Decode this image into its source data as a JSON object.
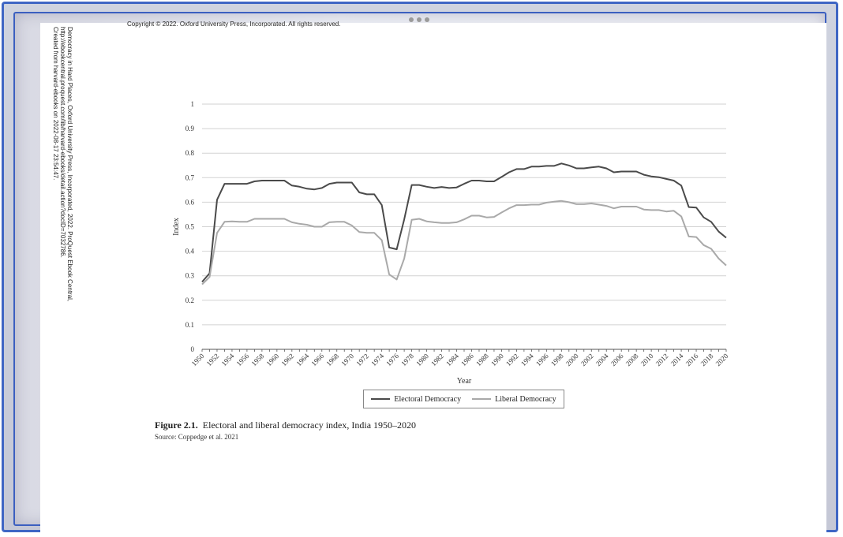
{
  "header": {
    "copyright": "Copyright © 2022. Oxford University Press, Incorporated. All rights reserved."
  },
  "sidebar": {
    "line1": "Democracy in Hard Places, Oxford University Press, Incorporated, 2022. ProQuest Ebook Central,",
    "line2": "http://ebookcentral.proquest.com/lib/harvard-ebooks/detail.action?docID=7032786.",
    "line3": "Created from harvard-ebooks on 2022-08-17 23:54:47."
  },
  "figure": {
    "label": "Figure 2.1.",
    "title": "Electoral and liberal democracy index, India 1950–2020",
    "source": "Source: Coppedge et al. 2021"
  },
  "colors": {
    "electoral": "#4a4a4a",
    "liberal": "#a9a9a9",
    "grid": "#d2d2d2",
    "frame": "#3f66c4"
  },
  "chart_data": {
    "type": "line",
    "xlabel": "Year",
    "ylabel": "Index",
    "ylim": [
      0,
      1
    ],
    "yticks": [
      "0",
      "0.1",
      "0.2",
      "0.3",
      "0.4",
      "0.5",
      "0.6",
      "0.7",
      "0.8",
      "0.9",
      "1"
    ],
    "xticks": [
      "1950",
      "1952",
      "1954",
      "1956",
      "1958",
      "1960",
      "1962",
      "1964",
      "1966",
      "1968",
      "1970",
      "1972",
      "1974",
      "1976",
      "1978",
      "1980",
      "1982",
      "1984",
      "1986",
      "1988",
      "1990",
      "1992",
      "1994",
      "1996",
      "1998",
      "2000",
      "2002",
      "2004",
      "2006",
      "2008",
      "2010",
      "2012",
      "2014",
      "2016",
      "2018",
      "2020"
    ],
    "x": [
      1950,
      1951,
      1952,
      1953,
      1954,
      1955,
      1956,
      1957,
      1958,
      1959,
      1960,
      1961,
      1962,
      1963,
      1964,
      1965,
      1966,
      1967,
      1968,
      1969,
      1970,
      1971,
      1972,
      1973,
      1974,
      1975,
      1976,
      1977,
      1978,
      1979,
      1980,
      1981,
      1982,
      1983,
      1984,
      1985,
      1986,
      1987,
      1988,
      1989,
      1990,
      1991,
      1992,
      1993,
      1994,
      1995,
      1996,
      1997,
      1998,
      1999,
      2000,
      2001,
      2002,
      2003,
      2004,
      2005,
      2006,
      2007,
      2008,
      2009,
      2010,
      2011,
      2012,
      2013,
      2014,
      2015,
      2016,
      2017,
      2018,
      2019,
      2020
    ],
    "grid": true,
    "legend_position": "bottom-center",
    "series": [
      {
        "name": "Electoral Democracy",
        "values": [
          0.275,
          0.31,
          0.61,
          0.675,
          0.675,
          0.675,
          0.675,
          0.685,
          0.688,
          0.688,
          0.688,
          0.688,
          0.668,
          0.663,
          0.655,
          0.652,
          0.658,
          0.675,
          0.68,
          0.68,
          0.68,
          0.64,
          0.632,
          0.632,
          0.588,
          0.415,
          0.408,
          0.53,
          0.67,
          0.67,
          0.663,
          0.658,
          0.662,
          0.658,
          0.66,
          0.675,
          0.688,
          0.688,
          0.685,
          0.685,
          0.703,
          0.722,
          0.735,
          0.735,
          0.745,
          0.745,
          0.748,
          0.748,
          0.758,
          0.75,
          0.738,
          0.738,
          0.742,
          0.745,
          0.738,
          0.722,
          0.725,
          0.725,
          0.725,
          0.712,
          0.705,
          0.702,
          0.695,
          0.688,
          0.668,
          0.58,
          0.578,
          0.538,
          0.52,
          0.48,
          0.455
        ]
      },
      {
        "name": "Liberal Democracy",
        "values": [
          0.265,
          0.295,
          0.475,
          0.52,
          0.522,
          0.52,
          0.52,
          0.532,
          0.532,
          0.532,
          0.532,
          0.532,
          0.518,
          0.512,
          0.508,
          0.5,
          0.5,
          0.518,
          0.52,
          0.52,
          0.505,
          0.478,
          0.475,
          0.475,
          0.445,
          0.305,
          0.285,
          0.37,
          0.528,
          0.532,
          0.522,
          0.518,
          0.515,
          0.515,
          0.518,
          0.53,
          0.545,
          0.545,
          0.538,
          0.54,
          0.558,
          0.575,
          0.588,
          0.588,
          0.59,
          0.59,
          0.598,
          0.602,
          0.605,
          0.6,
          0.592,
          0.592,
          0.595,
          0.59,
          0.585,
          0.575,
          0.582,
          0.582,
          0.582,
          0.57,
          0.568,
          0.568,
          0.562,
          0.565,
          0.542,
          0.46,
          0.458,
          0.425,
          0.41,
          0.37,
          0.342
        ]
      }
    ]
  }
}
